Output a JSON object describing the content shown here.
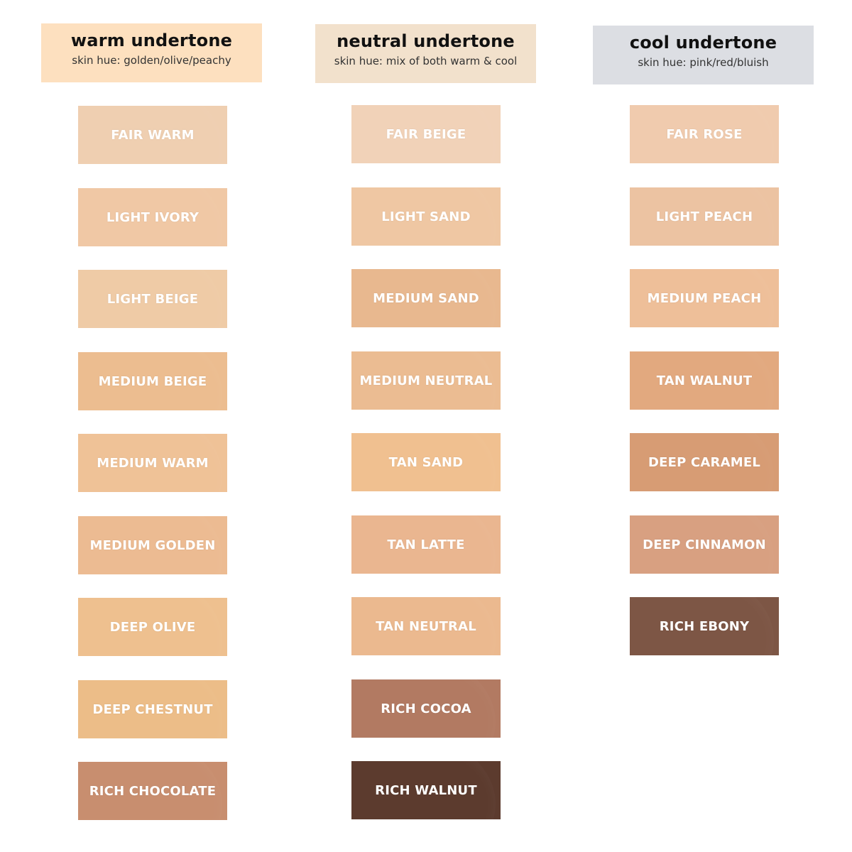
{
  "columns": [
    {
      "title": "warm undertone",
      "subtitle": "skin hue: golden/olive/peachy",
      "header_color": "#fde0bf",
      "shades": [
        {
          "name": "FAIR WARM",
          "color": "#efcfb1"
        },
        {
          "name": "LIGHT IVORY",
          "color": "#f0c8a5"
        },
        {
          "name": "LIGHT BEIGE",
          "color": "#efcba6"
        },
        {
          "name": "MEDIUM BEIGE",
          "color": "#ecbd90"
        },
        {
          "name": "MEDIUM WARM",
          "color": "#efc297"
        },
        {
          "name": "MEDIUM GOLDEN",
          "color": "#ecbb92"
        },
        {
          "name": "DEEP OLIVE",
          "color": "#eec08f"
        },
        {
          "name": "DEEP CHESTNUT",
          "color": "#ecbd88"
        },
        {
          "name": "RICH CHOCOLATE",
          "color": "#c88e6f"
        }
      ]
    },
    {
      "title": "neutral undertone",
      "subtitle": "skin hue: mix of both warm & cool",
      "header_color": "#f2e1cc",
      "shades": [
        {
          "name": "FAIR BEIGE",
          "color": "#f1d2b8"
        },
        {
          "name": "LIGHT SAND",
          "color": "#efc7a3"
        },
        {
          "name": "MEDIUM SAND",
          "color": "#e8b88f"
        },
        {
          "name": "MEDIUM NEUTRAL",
          "color": "#ebbc92"
        },
        {
          "name": "TAN SAND",
          "color": "#f0c090"
        },
        {
          "name": "TAN LATTE",
          "color": "#eab690"
        },
        {
          "name": "TAN NEUTRAL",
          "color": "#ebb98f"
        },
        {
          "name": "RICH COCOA",
          "color": "#b27a62"
        },
        {
          "name": "RICH WALNUT",
          "color": "#5c3b2e"
        }
      ]
    },
    {
      "title": "cool undertone",
      "subtitle": "skin hue: pink/red/bluish",
      "header_color": "#dcdee3",
      "shades": [
        {
          "name": "FAIR ROSE",
          "color": "#f0cbae"
        },
        {
          "name": "LIGHT PEACH",
          "color": "#ecc3a2"
        },
        {
          "name": "MEDIUM PEACH",
          "color": "#eebf99"
        },
        {
          "name": "TAN WALNUT",
          "color": "#e2a97f"
        },
        {
          "name": "DEEP CARAMEL",
          "color": "#d79c74"
        },
        {
          "name": "DEEP CINNAMON",
          "color": "#d8a081"
        },
        {
          "name": "RICH EBONY",
          "color": "#7d5645"
        }
      ]
    }
  ]
}
